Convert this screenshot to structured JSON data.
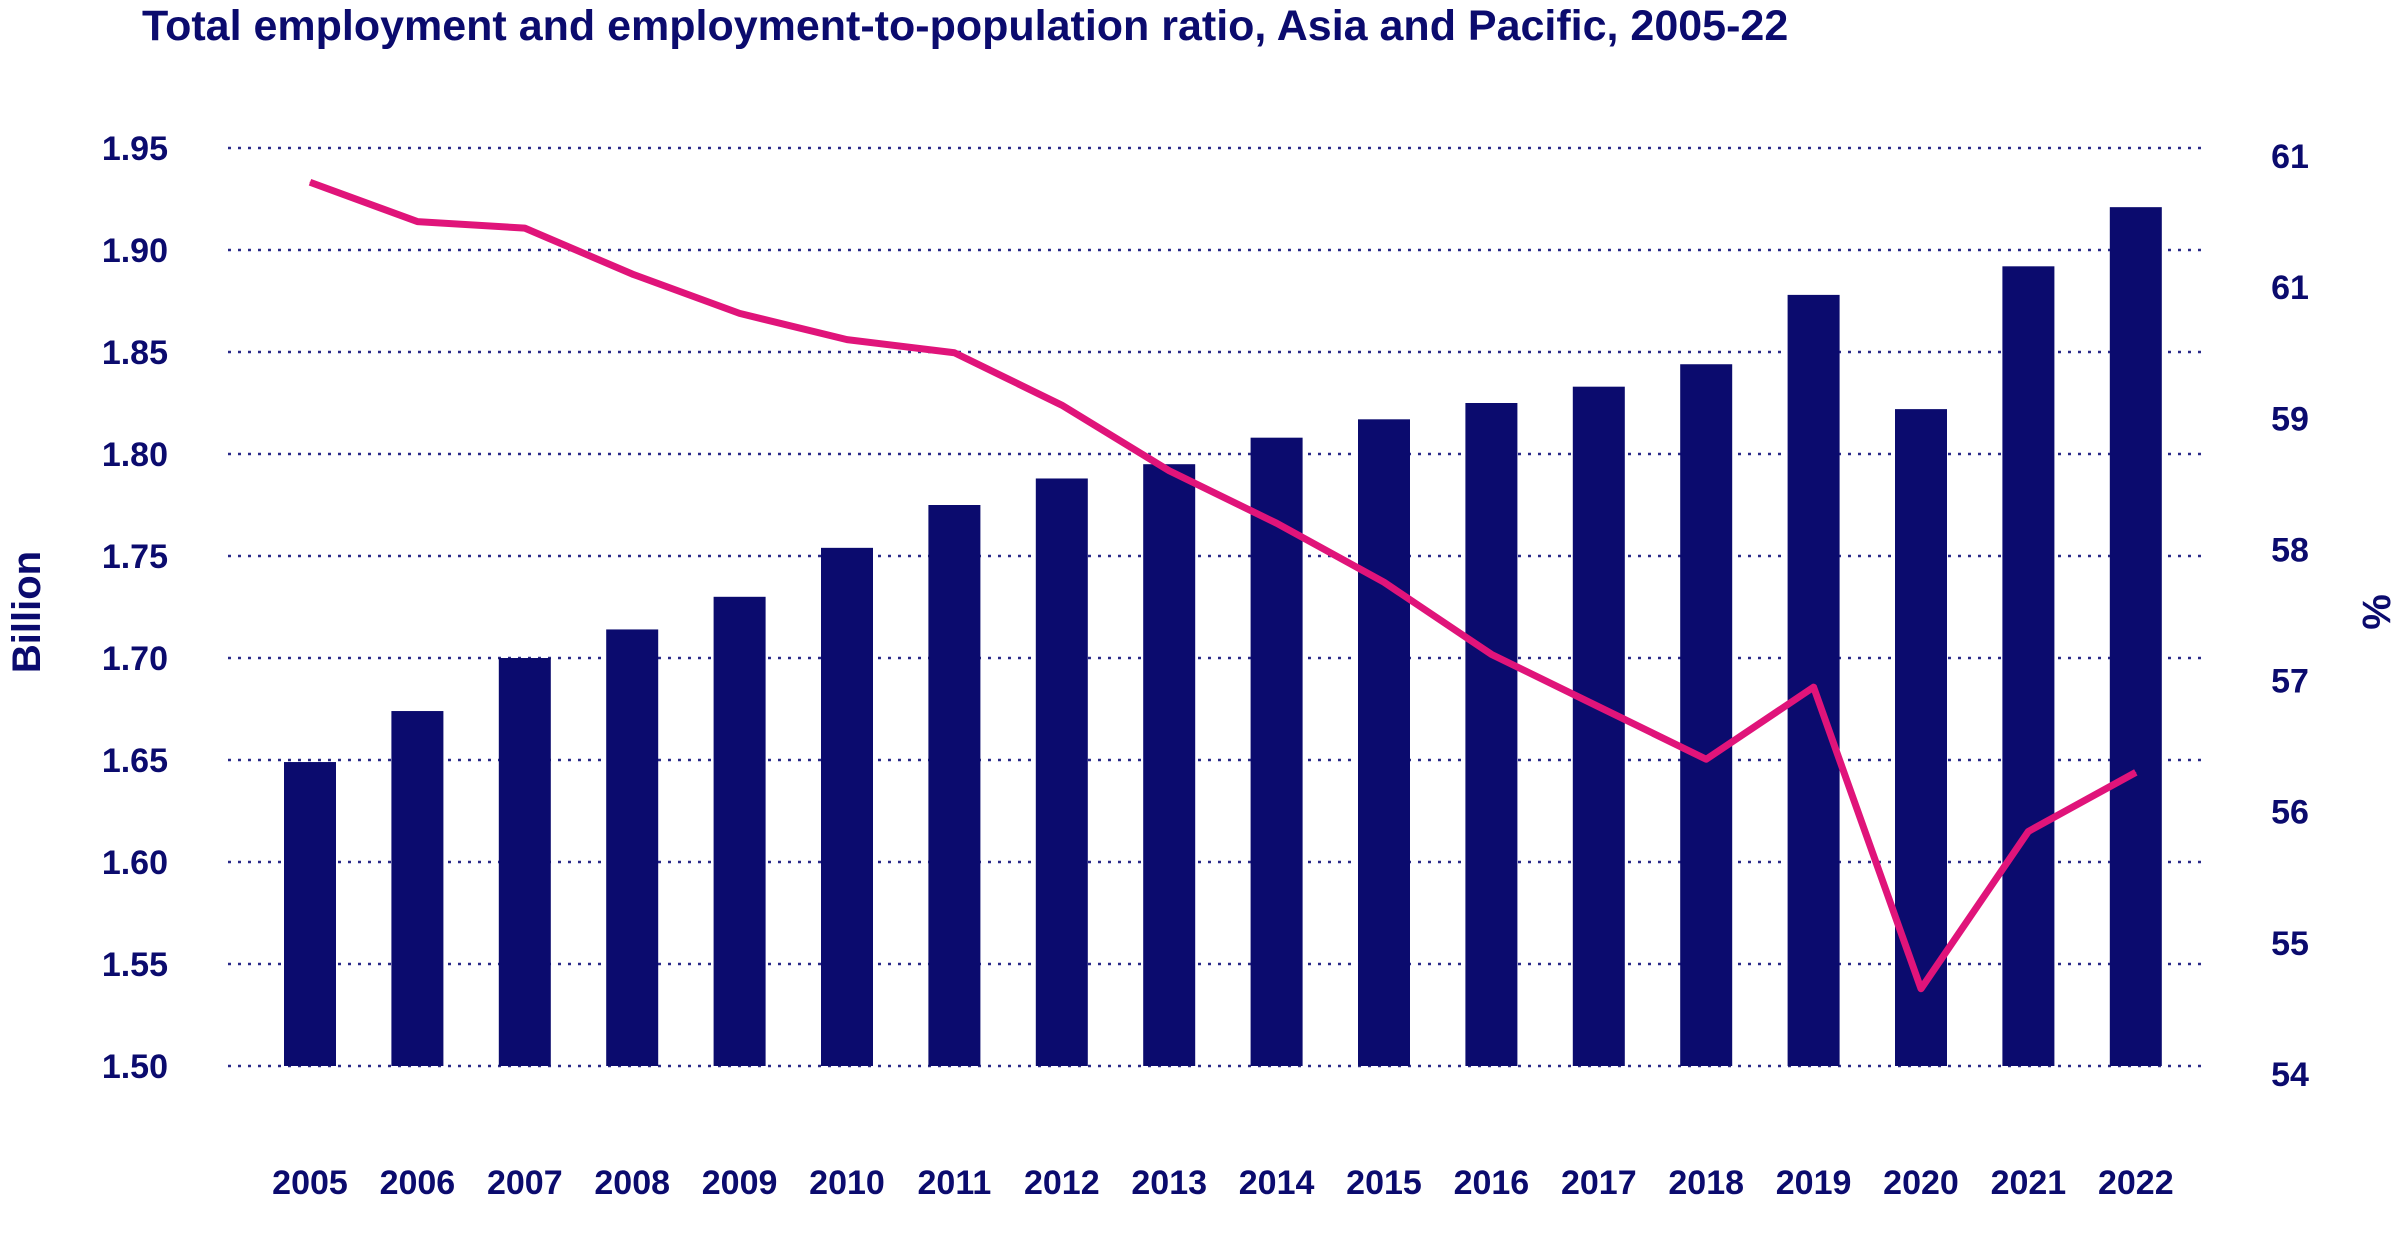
{
  "chart_data": {
    "type": "bar",
    "title": "Total employment and employment-to-population ratio, Asia and Pacific, 2005-22",
    "categories": [
      "2005",
      "2006",
      "2007",
      "2008",
      "2009",
      "2010",
      "2011",
      "2012",
      "2013",
      "2014",
      "2015",
      "2016",
      "2017",
      "2018",
      "2019",
      "2020",
      "2021",
      "2022"
    ],
    "series": [
      {
        "type": "bar",
        "axis": "left",
        "color": "#0b0b6e",
        "values": [
          1.649,
          1.674,
          1.7,
          1.714,
          1.73,
          1.754,
          1.775,
          1.788,
          1.795,
          1.808,
          1.817,
          1.825,
          1.833,
          1.844,
          1.878,
          1.822,
          1.892,
          1.921
        ]
      },
      {
        "type": "line",
        "axis": "right",
        "color": "#e0147a",
        "values": [
          60.8,
          60.5,
          60.45,
          60.1,
          59.8,
          59.6,
          59.5,
          59.1,
          58.6,
          58.2,
          57.75,
          57.2,
          56.8,
          56.4,
          56.95,
          54.65,
          55.85,
          56.3
        ]
      }
    ],
    "y_left": {
      "label": "Billion",
      "ylim": [
        1.5,
        1.95
      ],
      "ticks": [
        "1.50",
        "1.55",
        "1.60",
        "1.65",
        "1.70",
        "1.75",
        "1.80",
        "1.85",
        "1.90",
        "1.95"
      ]
    },
    "y_right": {
      "label": "%",
      "ylim": [
        54,
        61
      ],
      "ticks": [
        "54",
        "55",
        "56",
        "57",
        "58",
        "59",
        "61",
        "61"
      ]
    },
    "grid": true,
    "grid_style": "dotted"
  }
}
